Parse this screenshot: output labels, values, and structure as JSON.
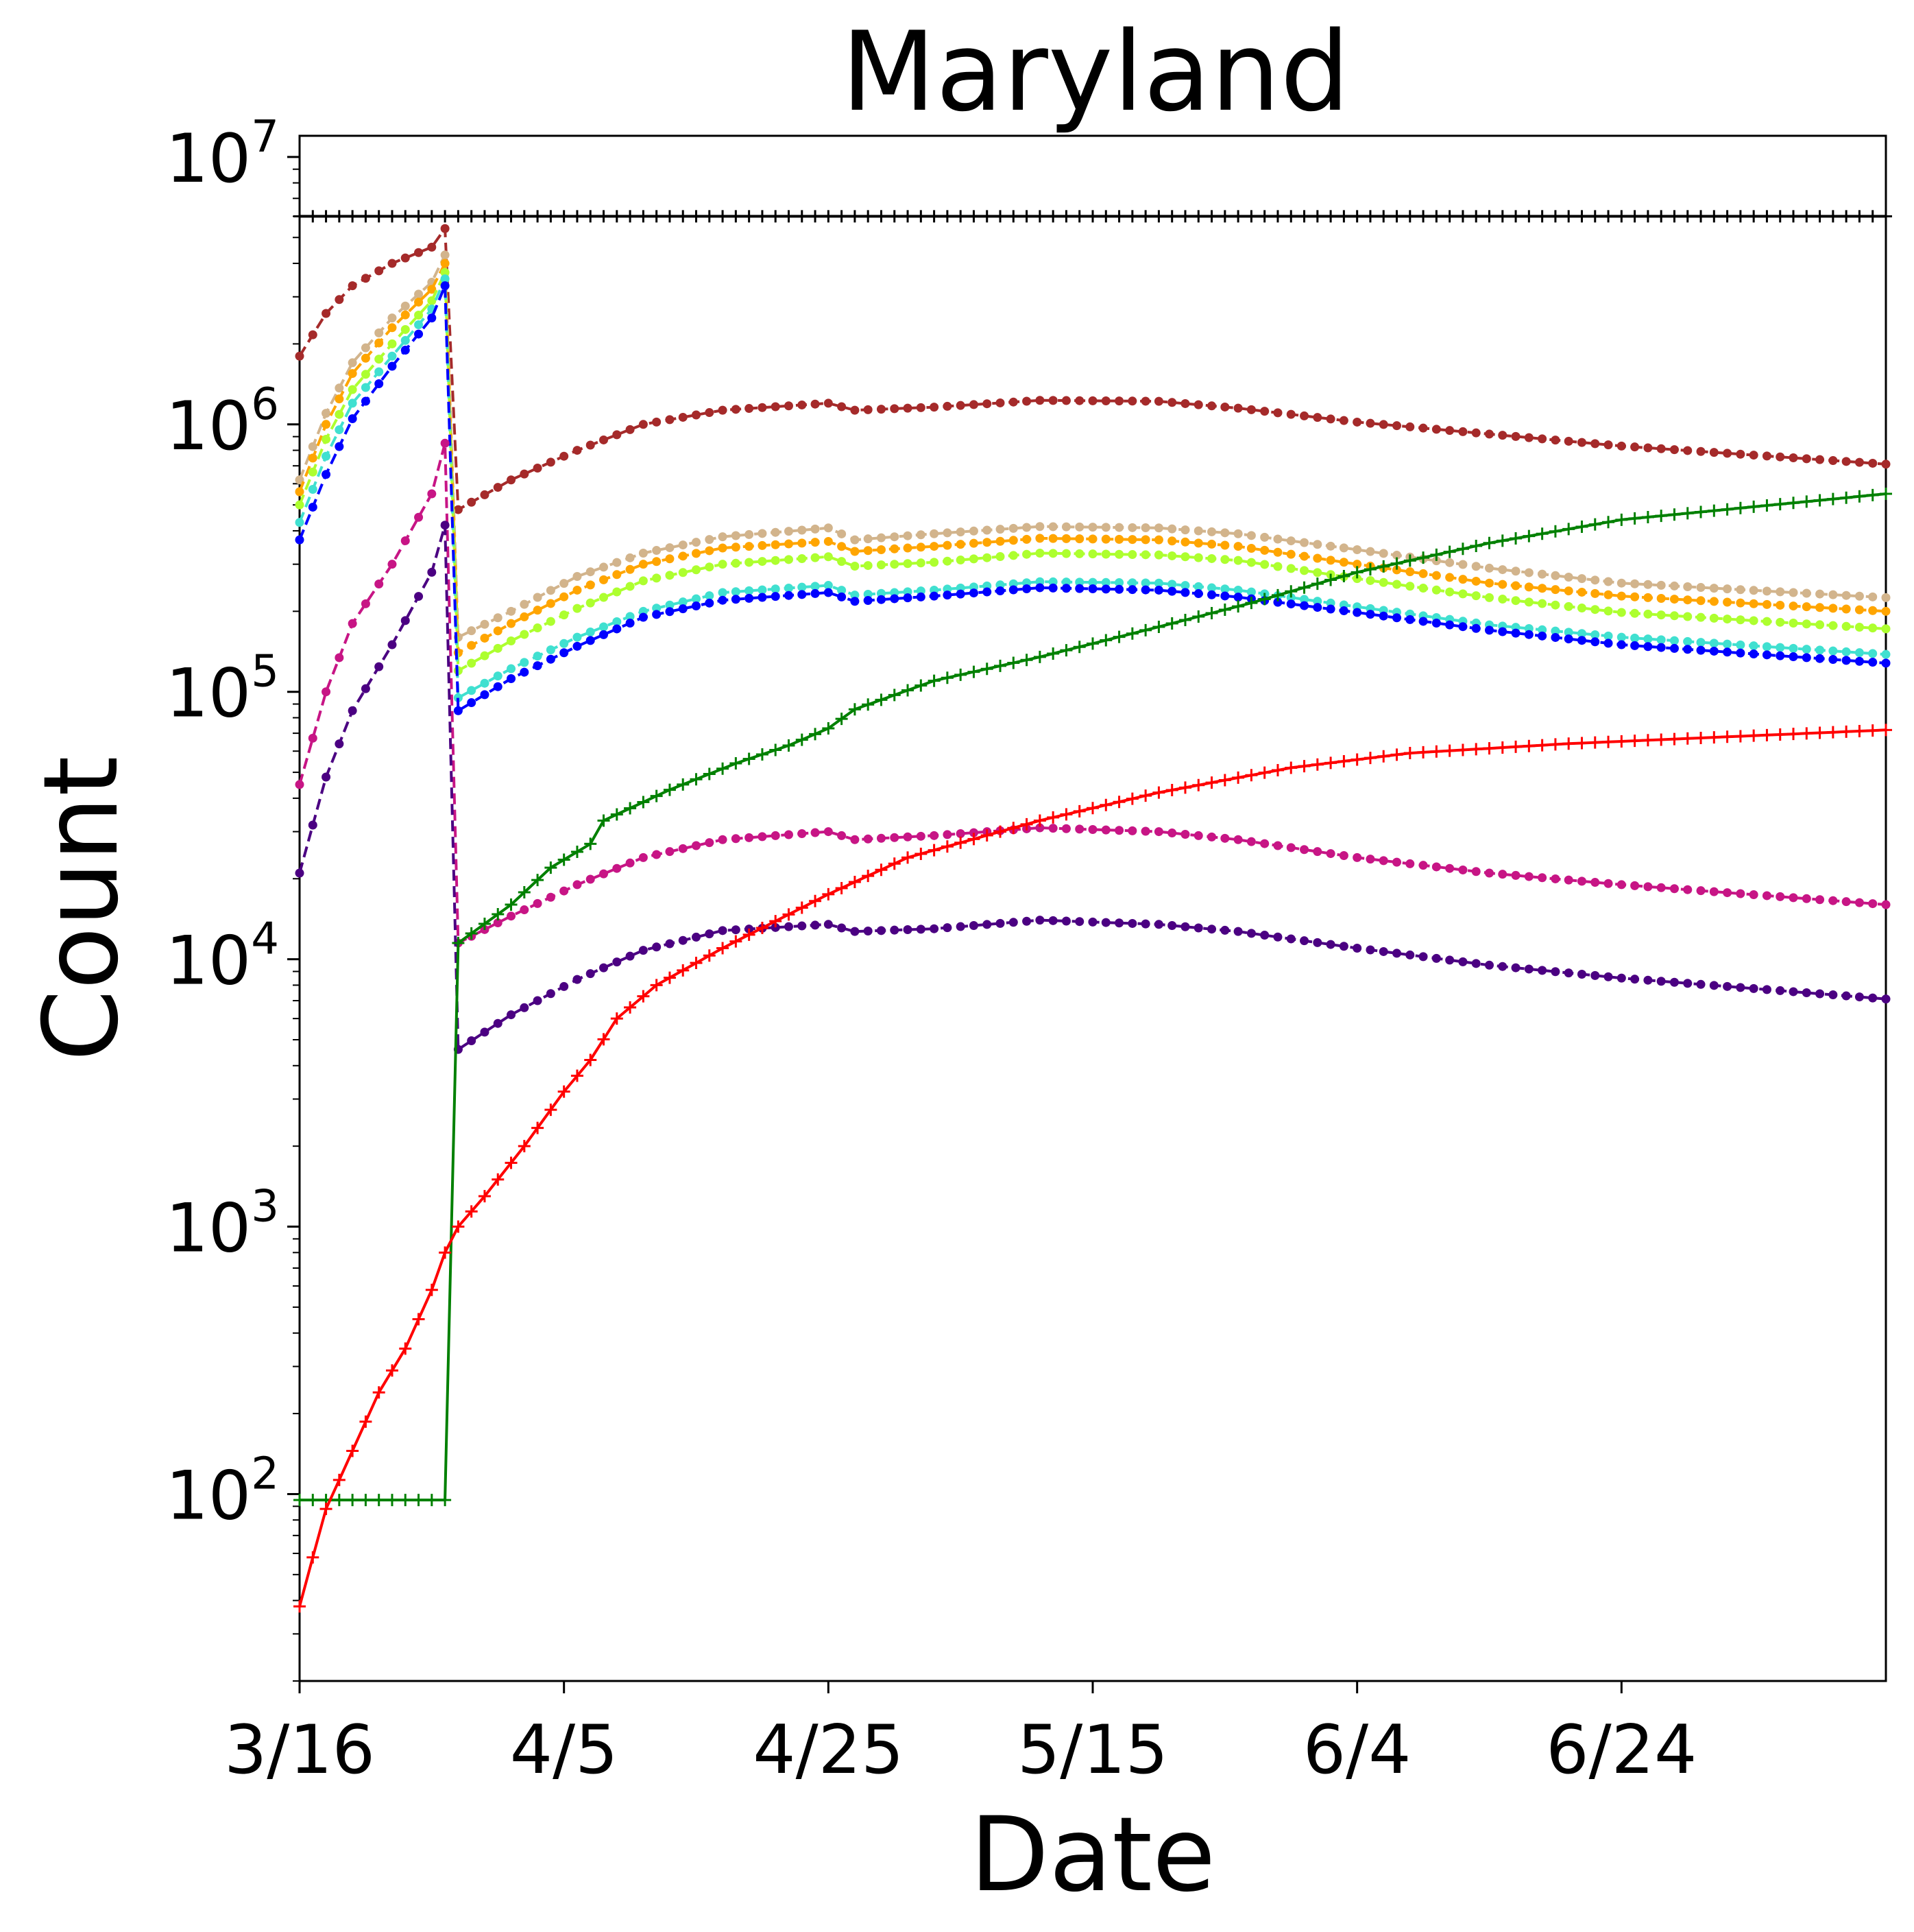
{
  "chart_data": {
    "type": "line",
    "title": "Maryland",
    "xlabel": "Date",
    "ylabel": "Count",
    "yscale": "log",
    "ylim": [
      20,
      12000000
    ],
    "xlim": [
      "2020-03-16",
      "2020-07-14"
    ],
    "x_ticks": [
      {
        "date": "2020-03-16",
        "label": "3/16"
      },
      {
        "date": "2020-04-05",
        "label": "4/5"
      },
      {
        "date": "2020-04-25",
        "label": "4/25"
      },
      {
        "date": "2020-05-15",
        "label": "5/15"
      },
      {
        "date": "2020-06-04",
        "label": "6/4"
      },
      {
        "date": "2020-06-24",
        "label": "6/24"
      }
    ],
    "y_ticks": [
      {
        "value": 100,
        "base": "10",
        "exp": "2"
      },
      {
        "value": 1000,
        "base": "10",
        "exp": "3"
      },
      {
        "value": 10000,
        "base": "10",
        "exp": "4"
      },
      {
        "value": 100000,
        "base": "10",
        "exp": "5"
      },
      {
        "value": 1000000,
        "base": "10",
        "exp": "6"
      },
      {
        "value": 10000000,
        "base": "10",
        "exp": "7"
      }
    ],
    "grid": false,
    "legend": "none",
    "series": [
      {
        "color": "#000000",
        "line": "solid",
        "marker": "plus",
        "points": [
          [
            "2020-03-16",
            6000000
          ],
          [
            "2020-07-14",
            6000000
          ]
        ]
      },
      {
        "color": "#a52a2a",
        "line": "dashed",
        "marker": "dot",
        "points": [
          [
            "2020-03-16",
            1800000
          ],
          [
            "2020-03-18",
            2600000
          ],
          [
            "2020-03-20",
            3300000
          ],
          [
            "2020-03-23",
            4000000
          ],
          [
            "2020-03-26",
            4600000
          ],
          [
            "2020-03-27",
            5400000
          ],
          [
            "2020-03-28",
            480000
          ],
          [
            "2020-04-01",
            620000
          ],
          [
            "2020-04-06",
            800000
          ],
          [
            "2020-04-11",
            1000000
          ],
          [
            "2020-04-17",
            1130000
          ],
          [
            "2020-04-25",
            1200000
          ],
          [
            "2020-04-27",
            1130000
          ],
          [
            "2020-05-03",
            1160000
          ],
          [
            "2020-05-11",
            1230000
          ],
          [
            "2020-05-20",
            1220000
          ],
          [
            "2020-05-26",
            1150000
          ],
          [
            "2020-06-04",
            1020000
          ],
          [
            "2020-06-14",
            920000
          ],
          [
            "2020-06-24",
            830000
          ],
          [
            "2020-07-14",
            710000
          ]
        ]
      },
      {
        "color": "#d2b48c",
        "line": "dashed",
        "marker": "dot",
        "points": [
          [
            "2020-03-16",
            620000
          ],
          [
            "2020-03-18",
            1100000
          ],
          [
            "2020-03-20",
            1700000
          ],
          [
            "2020-03-23",
            2500000
          ],
          [
            "2020-03-26",
            3400000
          ],
          [
            "2020-03-27",
            4300000
          ],
          [
            "2020-03-28",
            160000
          ],
          [
            "2020-04-01",
            200000
          ],
          [
            "2020-04-06",
            270000
          ],
          [
            "2020-04-11",
            330000
          ],
          [
            "2020-04-17",
            380000
          ],
          [
            "2020-04-25",
            410000
          ],
          [
            "2020-04-27",
            370000
          ],
          [
            "2020-05-03",
            390000
          ],
          [
            "2020-05-11",
            415000
          ],
          [
            "2020-05-20",
            410000
          ],
          [
            "2020-05-26",
            390000
          ],
          [
            "2020-06-04",
            340000
          ],
          [
            "2020-06-14",
            290000
          ],
          [
            "2020-06-24",
            255000
          ],
          [
            "2020-07-14",
            225000
          ]
        ]
      },
      {
        "color": "#ffa500",
        "line": "dashed",
        "marker": "dot",
        "points": [
          [
            "2020-03-16",
            560000
          ],
          [
            "2020-03-18",
            1000000
          ],
          [
            "2020-03-20",
            1550000
          ],
          [
            "2020-03-23",
            2300000
          ],
          [
            "2020-03-26",
            3200000
          ],
          [
            "2020-03-27",
            4000000
          ],
          [
            "2020-03-28",
            140000
          ],
          [
            "2020-04-01",
            180000
          ],
          [
            "2020-04-06",
            240000
          ],
          [
            "2020-04-11",
            300000
          ],
          [
            "2020-04-17",
            345000
          ],
          [
            "2020-04-25",
            365000
          ],
          [
            "2020-04-27",
            335000
          ],
          [
            "2020-05-03",
            350000
          ],
          [
            "2020-05-11",
            375000
          ],
          [
            "2020-05-20",
            370000
          ],
          [
            "2020-05-26",
            350000
          ],
          [
            "2020-06-04",
            300000
          ],
          [
            "2020-06-14",
            255000
          ],
          [
            "2020-06-24",
            228000
          ],
          [
            "2020-07-14",
            200000
          ]
        ]
      },
      {
        "color": "#adff2f",
        "line": "dashed",
        "marker": "dot",
        "points": [
          [
            "2020-03-16",
            500000
          ],
          [
            "2020-03-18",
            880000
          ],
          [
            "2020-03-20",
            1350000
          ],
          [
            "2020-03-23",
            2000000
          ],
          [
            "2020-03-26",
            2900000
          ],
          [
            "2020-03-27",
            3700000
          ],
          [
            "2020-03-28",
            120000
          ],
          [
            "2020-04-01",
            155000
          ],
          [
            "2020-04-06",
            205000
          ],
          [
            "2020-04-11",
            260000
          ],
          [
            "2020-04-17",
            300000
          ],
          [
            "2020-04-25",
            320000
          ],
          [
            "2020-04-27",
            295000
          ],
          [
            "2020-05-03",
            305000
          ],
          [
            "2020-05-11",
            330000
          ],
          [
            "2020-05-20",
            325000
          ],
          [
            "2020-05-26",
            310000
          ],
          [
            "2020-06-04",
            265000
          ],
          [
            "2020-06-14",
            225000
          ],
          [
            "2020-06-24",
            198000
          ],
          [
            "2020-07-14",
            172000
          ]
        ]
      },
      {
        "color": "#40e0d0",
        "line": "dashed",
        "marker": "dot",
        "points": [
          [
            "2020-03-16",
            430000
          ],
          [
            "2020-03-18",
            760000
          ],
          [
            "2020-03-20",
            1200000
          ],
          [
            "2020-03-23",
            1800000
          ],
          [
            "2020-03-26",
            2700000
          ],
          [
            "2020-03-27",
            3500000
          ],
          [
            "2020-03-28",
            95000
          ],
          [
            "2020-04-01",
            122000
          ],
          [
            "2020-04-06",
            160000
          ],
          [
            "2020-04-11",
            200000
          ],
          [
            "2020-04-17",
            235000
          ],
          [
            "2020-04-25",
            250000
          ],
          [
            "2020-04-27",
            230000
          ],
          [
            "2020-05-03",
            240000
          ],
          [
            "2020-05-11",
            258000
          ],
          [
            "2020-05-20",
            255000
          ],
          [
            "2020-05-26",
            240000
          ],
          [
            "2020-06-04",
            208000
          ],
          [
            "2020-06-14",
            178000
          ],
          [
            "2020-06-24",
            160000
          ],
          [
            "2020-07-14",
            138000
          ]
        ]
      },
      {
        "color": "#0000ff",
        "line": "dashed",
        "marker": "dot",
        "points": [
          [
            "2020-03-16",
            370000
          ],
          [
            "2020-03-18",
            650000
          ],
          [
            "2020-03-20",
            1050000
          ],
          [
            "2020-03-23",
            1650000
          ],
          [
            "2020-03-26",
            2500000
          ],
          [
            "2020-03-27",
            3300000
          ],
          [
            "2020-03-28",
            85000
          ],
          [
            "2020-04-01",
            112000
          ],
          [
            "2020-04-06",
            148000
          ],
          [
            "2020-04-11",
            190000
          ],
          [
            "2020-04-17",
            220000
          ],
          [
            "2020-04-25",
            235000
          ],
          [
            "2020-04-27",
            218000
          ],
          [
            "2020-05-03",
            228000
          ],
          [
            "2020-05-11",
            245000
          ],
          [
            "2020-05-20",
            240000
          ],
          [
            "2020-05-26",
            226000
          ],
          [
            "2020-06-04",
            198000
          ],
          [
            "2020-06-14",
            170000
          ],
          [
            "2020-06-24",
            150000
          ],
          [
            "2020-07-14",
            128000
          ]
        ]
      },
      {
        "color": "#c71585",
        "line": "dashed",
        "marker": "dot",
        "points": [
          [
            "2020-03-16",
            45000
          ],
          [
            "2020-03-18",
            100000
          ],
          [
            "2020-03-20",
            180000
          ],
          [
            "2020-03-23",
            300000
          ],
          [
            "2020-03-26",
            550000
          ],
          [
            "2020-03-27",
            850000
          ],
          [
            "2020-03-28",
            11500
          ],
          [
            "2020-04-01",
            14500
          ],
          [
            "2020-04-06",
            19000
          ],
          [
            "2020-04-11",
            24000
          ],
          [
            "2020-04-17",
            28000
          ],
          [
            "2020-04-25",
            30000
          ],
          [
            "2020-04-27",
            28000
          ],
          [
            "2020-05-03",
            29000
          ],
          [
            "2020-05-11",
            31000
          ],
          [
            "2020-05-20",
            30000
          ],
          [
            "2020-05-26",
            28000
          ],
          [
            "2020-06-04",
            24000
          ],
          [
            "2020-06-14",
            21000
          ],
          [
            "2020-06-24",
            19000
          ],
          [
            "2020-07-14",
            16000
          ]
        ]
      },
      {
        "color": "#4b0082",
        "line": "dashed",
        "marker": "dot",
        "points": [
          [
            "2020-03-16",
            21000
          ],
          [
            "2020-03-18",
            48000
          ],
          [
            "2020-03-20",
            85000
          ],
          [
            "2020-03-23",
            150000
          ],
          [
            "2020-03-26",
            280000
          ],
          [
            "2020-03-27",
            420000
          ],
          [
            "2020-03-28",
            4600
          ],
          [
            "2020-04-01",
            6200
          ],
          [
            "2020-04-06",
            8400
          ],
          [
            "2020-04-11",
            10800
          ],
          [
            "2020-04-17",
            12800
          ],
          [
            "2020-04-25",
            13500
          ],
          [
            "2020-04-27",
            12700
          ],
          [
            "2020-05-03",
            13000
          ],
          [
            "2020-05-11",
            14000
          ],
          [
            "2020-05-20",
            13500
          ],
          [
            "2020-05-26",
            12700
          ],
          [
            "2020-06-04",
            11000
          ],
          [
            "2020-06-14",
            9500
          ],
          [
            "2020-06-24",
            8500
          ],
          [
            "2020-07-14",
            7100
          ]
        ]
      },
      {
        "color": "#008000",
        "line": "solid",
        "marker": "plus",
        "points": [
          [
            "2020-03-16",
            95
          ],
          [
            "2020-03-27",
            95
          ],
          [
            "2020-03-28",
            11500
          ],
          [
            "2020-04-01",
            16000
          ],
          [
            "2020-04-04",
            22000
          ],
          [
            "2020-04-07",
            27000
          ],
          [
            "2020-04-08",
            33000
          ],
          [
            "2020-04-13",
            43000
          ],
          [
            "2020-04-18",
            54000
          ],
          [
            "2020-04-22",
            63000
          ],
          [
            "2020-04-25",
            73000
          ],
          [
            "2020-04-27",
            86000
          ],
          [
            "2020-05-03",
            110000
          ],
          [
            "2020-05-11",
            135000
          ],
          [
            "2020-05-20",
            175000
          ],
          [
            "2020-05-27",
            215000
          ],
          [
            "2020-06-04",
            280000
          ],
          [
            "2020-06-14",
            360000
          ],
          [
            "2020-06-24",
            440000
          ],
          [
            "2020-07-14",
            550000
          ]
        ]
      },
      {
        "color": "#ff0000",
        "line": "solid",
        "marker": "plus",
        "points": [
          [
            "2020-03-16",
            38
          ],
          [
            "2020-03-17",
            58
          ],
          [
            "2020-03-18",
            88
          ],
          [
            "2020-03-20",
            145
          ],
          [
            "2020-03-22",
            240
          ],
          [
            "2020-03-24",
            350
          ],
          [
            "2020-03-26",
            580
          ],
          [
            "2020-03-27",
            800
          ],
          [
            "2020-03-28",
            1000
          ],
          [
            "2020-03-30",
            1300
          ],
          [
            "2020-04-02",
            2000
          ],
          [
            "2020-04-05",
            3200
          ],
          [
            "2020-04-07",
            4200
          ],
          [
            "2020-04-09",
            6000
          ],
          [
            "2020-04-12",
            8000
          ],
          [
            "2020-04-17",
            11000
          ],
          [
            "2020-04-25",
            17500
          ],
          [
            "2020-05-01",
            24000
          ],
          [
            "2020-05-11",
            33000
          ],
          [
            "2020-05-20",
            42000
          ],
          [
            "2020-05-30",
            52000
          ],
          [
            "2020-06-08",
            59000
          ],
          [
            "2020-06-20",
            64000
          ],
          [
            "2020-07-14",
            72000
          ]
        ]
      }
    ]
  }
}
